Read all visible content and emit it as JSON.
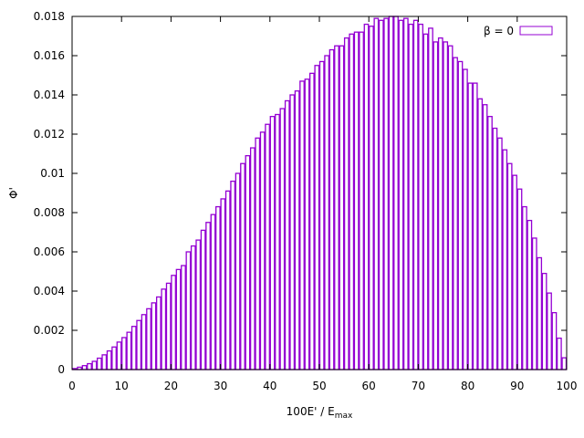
{
  "chart_data": {
    "type": "bar",
    "style": "histogram-outline",
    "series": [
      {
        "name": "β = 0",
        "color": "#9400d3",
        "bin_width": 1,
        "x": [
          0,
          1,
          2,
          3,
          4,
          5,
          6,
          7,
          8,
          9,
          10,
          11,
          12,
          13,
          14,
          15,
          16,
          17,
          18,
          19,
          20,
          21,
          22,
          23,
          24,
          25,
          26,
          27,
          28,
          29,
          30,
          31,
          32,
          33,
          34,
          35,
          36,
          37,
          38,
          39,
          40,
          41,
          42,
          43,
          44,
          45,
          46,
          47,
          48,
          49,
          50,
          51,
          52,
          53,
          54,
          55,
          56,
          57,
          58,
          59,
          60,
          61,
          62,
          63,
          64,
          65,
          66,
          67,
          68,
          69,
          70,
          71,
          72,
          73,
          74,
          75,
          76,
          77,
          78,
          79,
          80,
          81,
          82,
          83,
          84,
          85,
          86,
          87,
          88,
          89,
          90,
          91,
          92,
          93,
          94,
          95,
          96,
          97,
          98,
          99
        ],
        "values": [
          5e-05,
          0.00012,
          0.0002,
          0.0003,
          0.00042,
          0.00058,
          0.00075,
          0.00095,
          0.00115,
          0.0014,
          0.00163,
          0.0019,
          0.0022,
          0.0025,
          0.0028,
          0.0031,
          0.0034,
          0.0037,
          0.0041,
          0.0044,
          0.0048,
          0.0051,
          0.0053,
          0.006,
          0.0063,
          0.0066,
          0.0071,
          0.0075,
          0.0079,
          0.0083,
          0.0087,
          0.0091,
          0.0096,
          0.01,
          0.0105,
          0.0109,
          0.0113,
          0.0118,
          0.0121,
          0.0125,
          0.0129,
          0.013,
          0.0133,
          0.0137,
          0.014,
          0.0142,
          0.0147,
          0.0148,
          0.0151,
          0.0155,
          0.0157,
          0.016,
          0.0163,
          0.0165,
          0.0165,
          0.0169,
          0.0171,
          0.0172,
          0.0172,
          0.0176,
          0.0175,
          0.0179,
          0.0178,
          0.0179,
          0.018,
          0.018,
          0.0178,
          0.0179,
          0.0176,
          0.0178,
          0.0176,
          0.0171,
          0.0174,
          0.0167,
          0.0169,
          0.0167,
          0.0165,
          0.0159,
          0.0157,
          0.0153,
          0.0146,
          0.0146,
          0.0138,
          0.0135,
          0.0129,
          0.0123,
          0.0118,
          0.0112,
          0.0105,
          0.0099,
          0.0092,
          0.0083,
          0.0076,
          0.0067,
          0.0057,
          0.0049,
          0.0039,
          0.0029,
          0.0016,
          0.0006
        ]
      }
    ],
    "xlabel_main": "100E' / E",
    "xlabel_sub": "max",
    "ylabel": "Φ'",
    "xlim": [
      0,
      100
    ],
    "ylim": [
      0,
      0.018
    ],
    "x_ticks": [
      0,
      10,
      20,
      30,
      40,
      50,
      60,
      70,
      80,
      90,
      100
    ],
    "y_ticks": [
      0,
      0.002,
      0.004,
      0.006,
      0.008,
      0.01,
      0.012,
      0.014,
      0.016,
      0.018
    ],
    "x_tick_labels": [
      "0",
      "10",
      "20",
      "30",
      "40",
      "50",
      "60",
      "70",
      "80",
      "90",
      "100"
    ],
    "y_tick_labels": [
      "0",
      "0.002",
      "0.004",
      "0.006",
      "0.008",
      "0.01",
      "0.012",
      "0.014",
      "0.016",
      "0.018"
    ],
    "grid": false,
    "legend_position": "top-right"
  }
}
